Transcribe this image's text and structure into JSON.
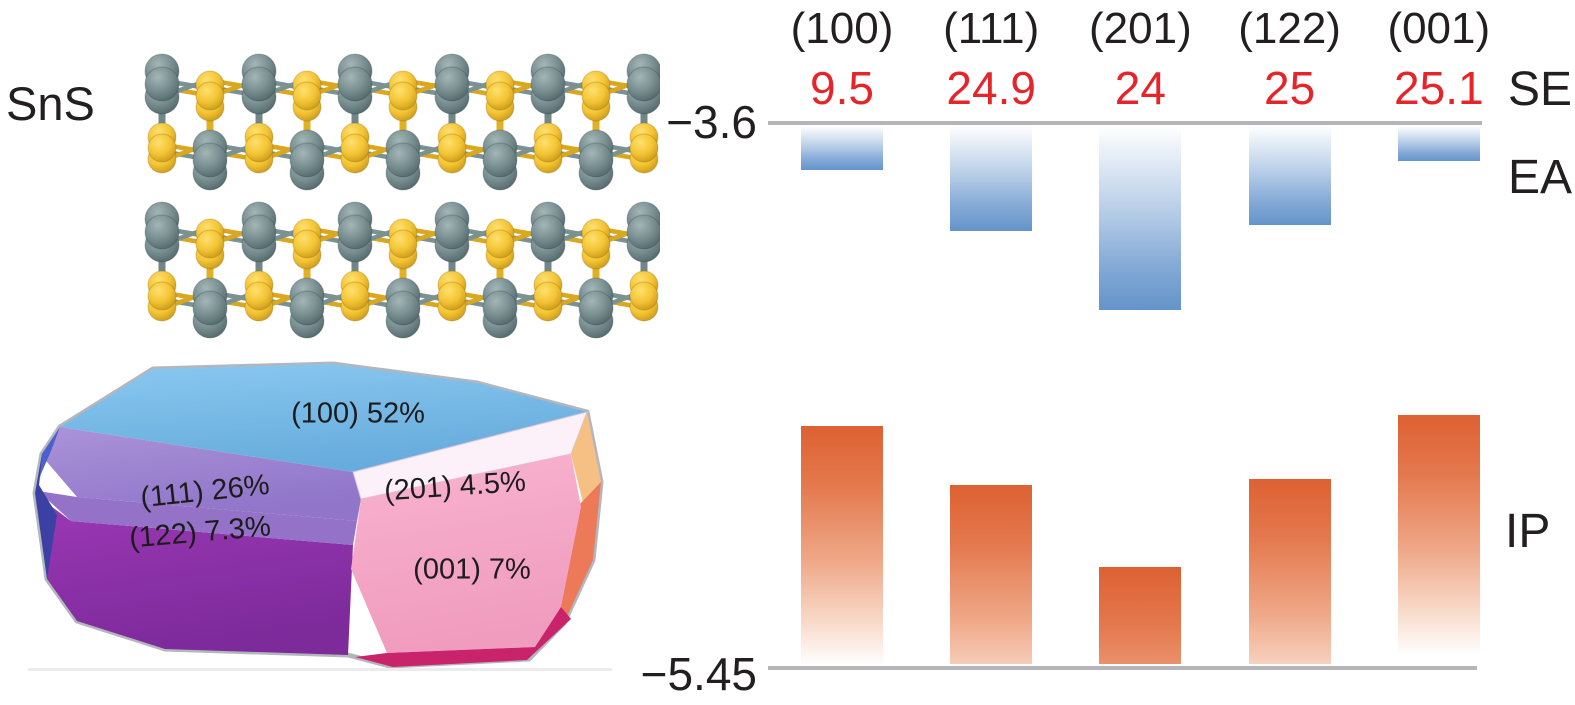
{
  "figure": {
    "compound_label": "SnS",
    "structure": {
      "tin_atom_color": "#72898b",
      "sulfur_atom_color": "#f3c433"
    },
    "wulff": {
      "facets": [
        {
          "text": "(100) 52%"
        },
        {
          "text": "(111) 26%"
        },
        {
          "text": "(201) 4.5%"
        },
        {
          "text": "(122) 7.3%"
        },
        {
          "text": "(001) 7%"
        }
      ]
    },
    "axis_ticks": {
      "top": "−3.6",
      "bottom": "−5.45"
    },
    "row_labels": {
      "se": "SE",
      "ea": "EA",
      "ip": "IP"
    }
  },
  "chart_data": {
    "type": "bar",
    "categories": [
      "(100)",
      "(111)",
      "(201)",
      "(122)",
      "(001)"
    ],
    "series": [
      {
        "name": "SE",
        "role": "surface-energy",
        "display": "numeric-label-row",
        "color": "#e5252a",
        "values": [
          9.5,
          24.9,
          24,
          25,
          25.1
        ]
      },
      {
        "name": "EA",
        "role": "electron-affinity",
        "display": "bar-down-from-top-reference",
        "color": "#6494ca",
        "values_eV_estimated": [
          -3.75,
          -3.96,
          -4.23,
          -3.94,
          -3.72
        ]
      },
      {
        "name": "IP",
        "role": "ionization-potential",
        "display": "bar-up-from-bottom-reference",
        "color": "#de6233",
        "values_eV_estimated": [
          -4.63,
          -4.83,
          -5.11,
          -4.81,
          -4.59
        ]
      }
    ],
    "y_axis": {
      "unit": "eV",
      "reference_top_eV": -3.6,
      "reference_bottom_eV": -5.45,
      "tick_labels": [
        "−3.6",
        "−5.45"
      ]
    },
    "grid": false,
    "legend_position": "right-edge-row-labels"
  }
}
